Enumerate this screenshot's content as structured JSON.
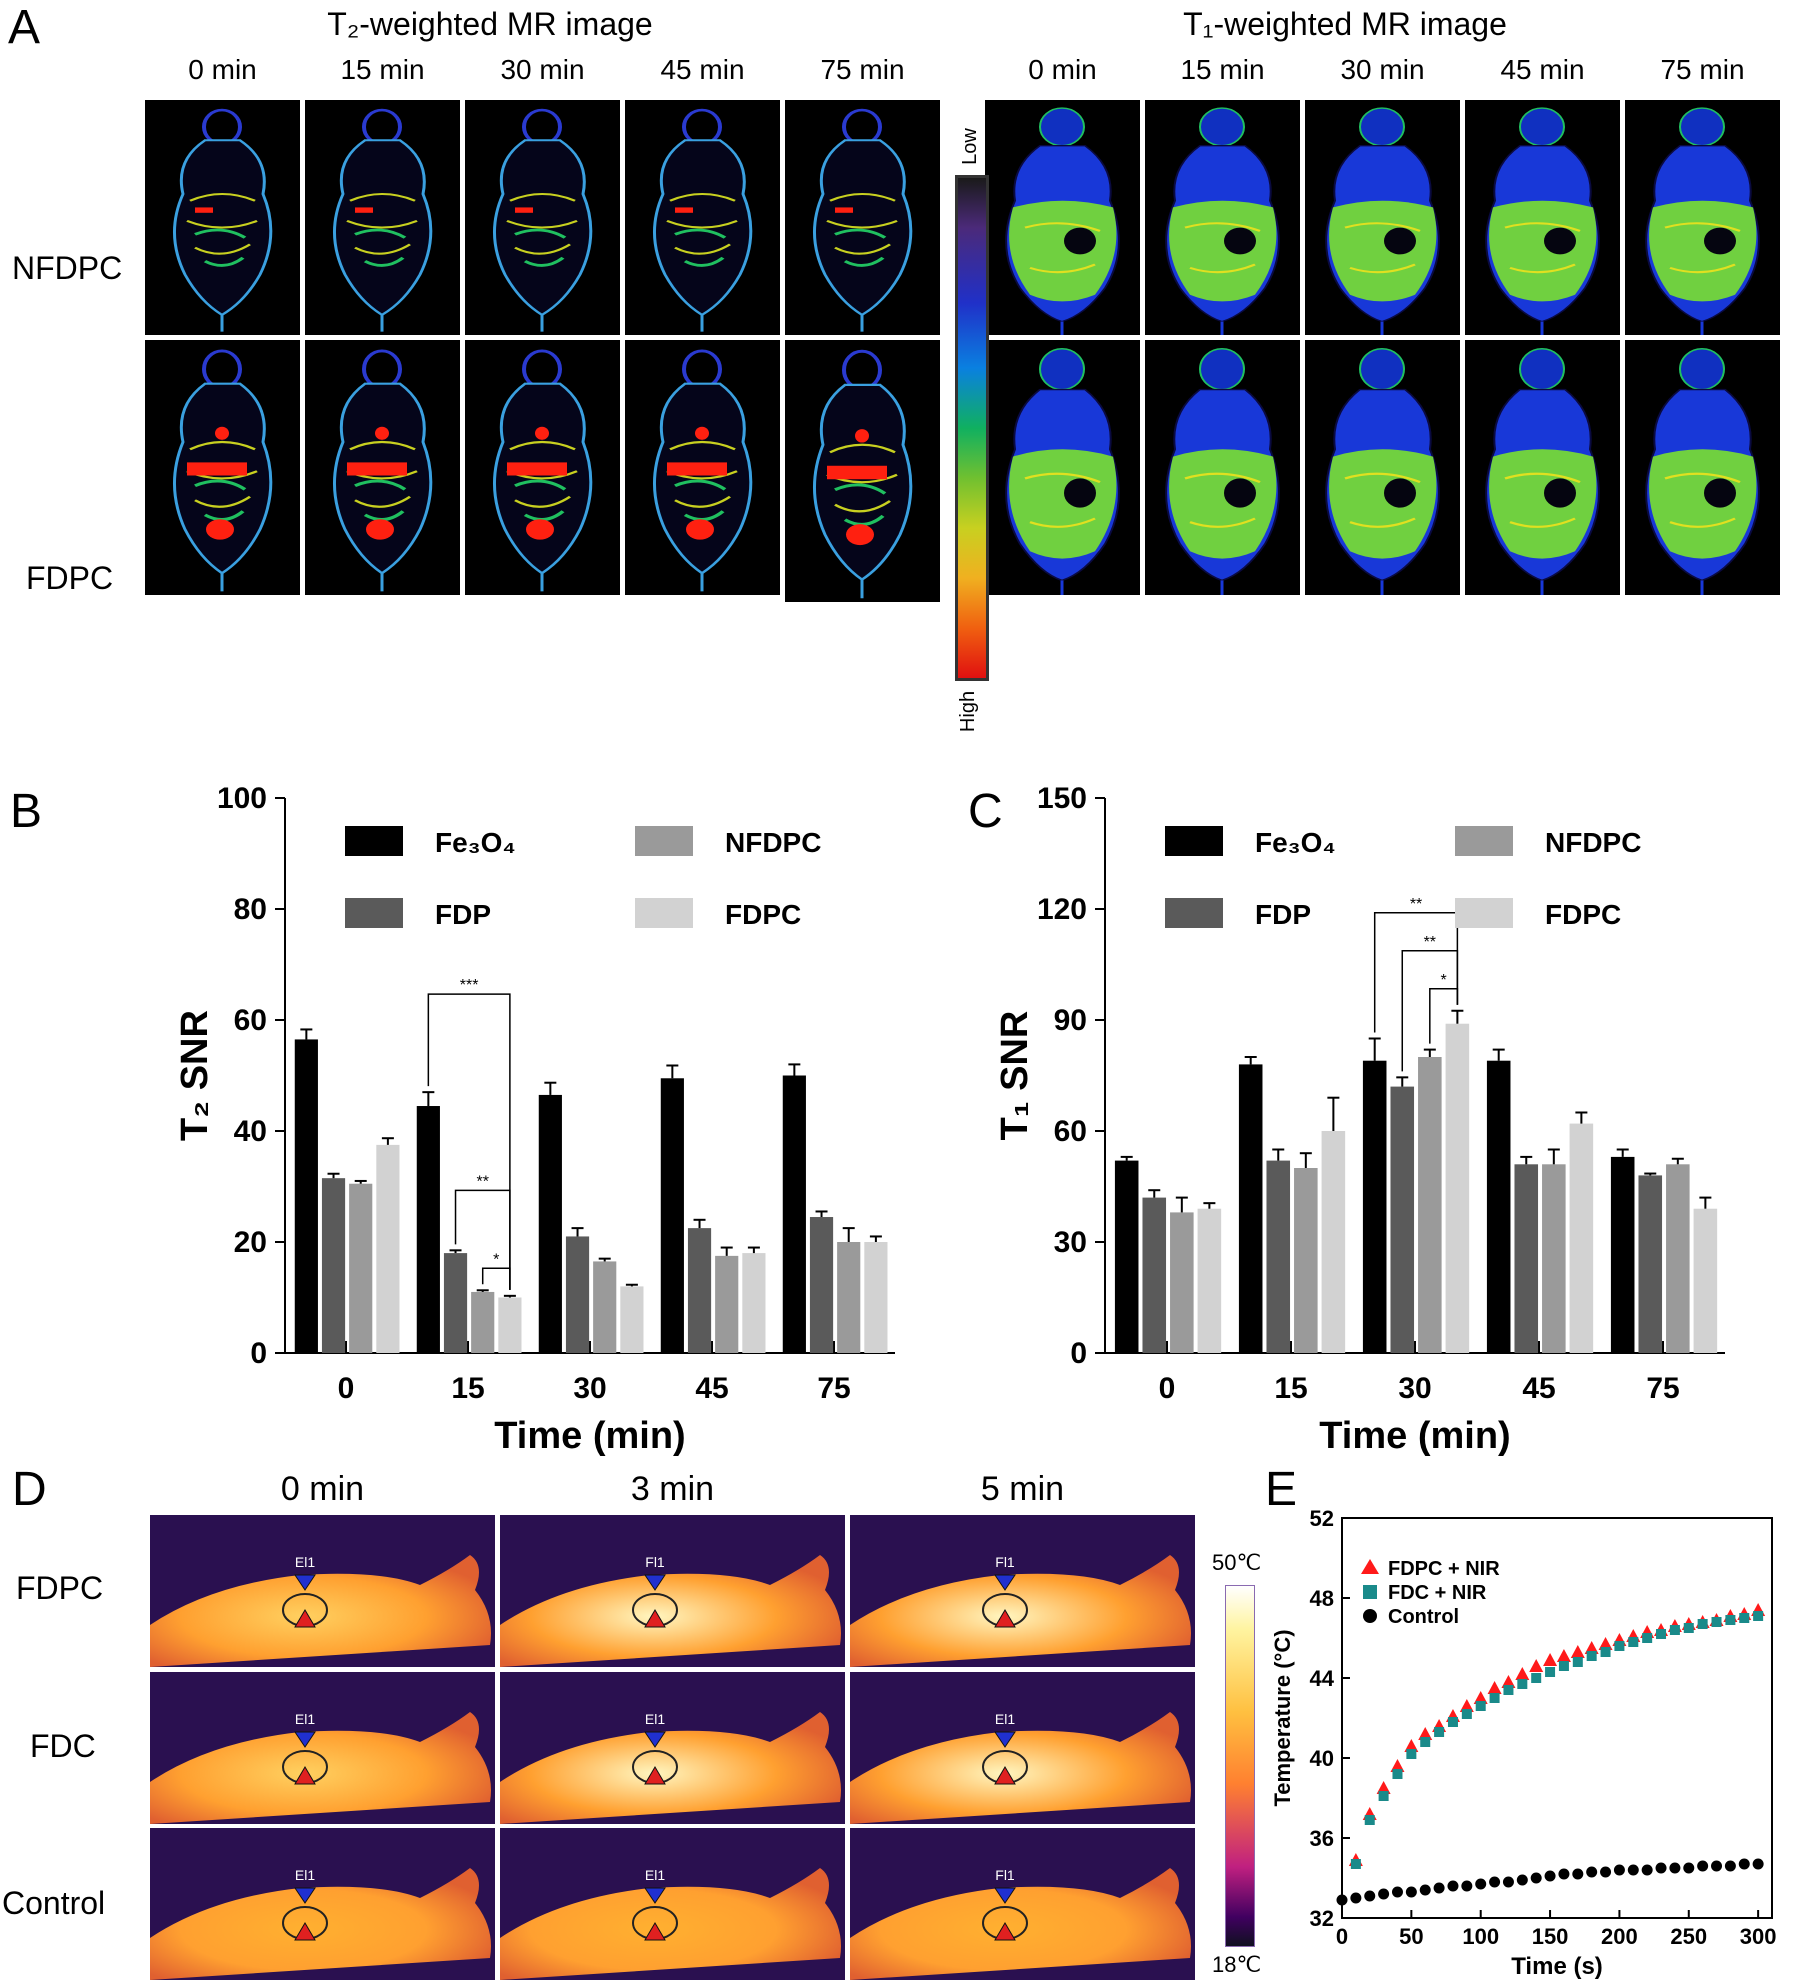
{
  "panelA": {
    "letter": "A",
    "t2_title": "T₂-weighted MR image",
    "t1_title": "T₁-weighted MR image",
    "times": [
      "0 min",
      "15 min",
      "30 min",
      "45 min",
      "75 min"
    ],
    "rows": [
      "NFDPC",
      "FDPC"
    ],
    "colorbar": {
      "low": "Low",
      "high": "High"
    }
  },
  "panelD": {
    "letter": "D",
    "times": [
      "0 min",
      "3 min",
      "5 min"
    ],
    "rows": [
      "FDPC",
      "FDC",
      "Control"
    ],
    "roi_labels": [
      [
        "El1",
        "Fl1",
        "Fl1"
      ],
      [
        "El1",
        "El1",
        "El1"
      ],
      [
        "El1",
        "El1",
        "Fl1"
      ]
    ],
    "scale_max": "50℃",
    "scale_min": "18℃"
  },
  "chart_data": [
    {
      "id": "B",
      "letter": "B",
      "type": "bar",
      "categories": [
        "0",
        "15",
        "30",
        "45",
        "75"
      ],
      "xlabel": "Time  (min)",
      "ylabel": "T₂ SNR",
      "ylim": [
        0,
        100
      ],
      "yticks": [
        0,
        20,
        40,
        60,
        80,
        100
      ],
      "series": [
        {
          "name": "Fe₃O₄",
          "color": "#000000",
          "values": [
            56.5,
            44.5,
            46.5,
            49.5,
            50.0
          ],
          "errors": [
            1.8,
            2.5,
            2.2,
            2.3,
            2.0
          ]
        },
        {
          "name": "FDP",
          "color": "#5a5a5a",
          "values": [
            31.5,
            18.0,
            21.0,
            22.5,
            24.5
          ],
          "errors": [
            0.8,
            0.5,
            1.5,
            1.5,
            1.0
          ]
        },
        {
          "name": "NFDPC",
          "color": "#9a9a9a",
          "values": [
            30.5,
            11.0,
            16.5,
            17.5,
            20.0
          ],
          "errors": [
            0.5,
            0.3,
            0.5,
            1.5,
            2.5
          ]
        },
        {
          "name": "FDPC",
          "color": "#d2d2d2",
          "values": [
            37.5,
            10.0,
            12.0,
            18.0,
            20.0
          ],
          "errors": [
            1.2,
            0.3,
            0.3,
            1.0,
            1.0
          ]
        }
      ],
      "significance": [
        {
          "category": 1,
          "from": 0,
          "to": 3,
          "label": "***"
        },
        {
          "category": 1,
          "from": 1,
          "to": 3,
          "label": "**"
        },
        {
          "category": 1,
          "from": 2,
          "to": 3,
          "label": "*"
        }
      ],
      "legend": "top"
    },
    {
      "id": "C",
      "letter": "C",
      "type": "bar",
      "categories": [
        "0",
        "15",
        "30",
        "45",
        "75"
      ],
      "xlabel": "Time  (min)",
      "ylabel": "T₁ SNR",
      "ylim": [
        0,
        150
      ],
      "yticks": [
        0,
        30,
        60,
        90,
        120,
        150
      ],
      "series": [
        {
          "name": "Fe₃O₄",
          "color": "#000000",
          "values": [
            52,
            78,
            79,
            79,
            53
          ],
          "errors": [
            1,
            2,
            6,
            3,
            2
          ]
        },
        {
          "name": "FDP",
          "color": "#5a5a5a",
          "values": [
            42,
            52,
            72,
            51,
            48
          ],
          "errors": [
            2,
            3,
            2.5,
            2,
            0.5
          ]
        },
        {
          "name": "NFDPC",
          "color": "#9a9a9a",
          "values": [
            38,
            50,
            80,
            51,
            51
          ],
          "errors": [
            4,
            4,
            2,
            4,
            1.5
          ]
        },
        {
          "name": "FDPC",
          "color": "#d2d2d2",
          "values": [
            39,
            60,
            89,
            62,
            39
          ],
          "errors": [
            1.5,
            9,
            3.5,
            3,
            3
          ]
        }
      ],
      "significance": [
        {
          "category": 2,
          "from": 0,
          "to": 3,
          "label": "**"
        },
        {
          "category": 2,
          "from": 1,
          "to": 3,
          "label": "**"
        },
        {
          "category": 2,
          "from": 2,
          "to": 3,
          "label": "*"
        }
      ],
      "legend": "top"
    },
    {
      "id": "E",
      "letter": "E",
      "type": "scatter",
      "xlabel": "Time (s)",
      "ylabel": "Temperature (°C)",
      "xlim": [
        0,
        310
      ],
      "ylim": [
        32,
        52
      ],
      "xticks": [
        0,
        50,
        100,
        150,
        200,
        250,
        300
      ],
      "yticks": [
        32,
        36,
        40,
        44,
        48,
        52
      ],
      "legend": "top-left",
      "series": [
        {
          "name": "FDPC + NIR",
          "color": "#ff1a1a",
          "marker": "triangle",
          "x": [
            10,
            20,
            30,
            40,
            50,
            60,
            70,
            80,
            90,
            100,
            110,
            120,
            130,
            140,
            150,
            160,
            170,
            180,
            190,
            200,
            210,
            220,
            230,
            240,
            250,
            260,
            270,
            280,
            290,
            300
          ],
          "y": [
            34.9,
            37.2,
            38.5,
            39.6,
            40.6,
            41.2,
            41.6,
            42.1,
            42.6,
            43.0,
            43.5,
            43.8,
            44.2,
            44.6,
            44.9,
            45.1,
            45.3,
            45.5,
            45.7,
            45.9,
            46.1,
            46.3,
            46.4,
            46.6,
            46.7,
            46.8,
            46.9,
            47.1,
            47.2,
            47.4
          ]
        },
        {
          "name": "FDC + NIR",
          "color": "#1a8a8a",
          "marker": "square",
          "x": [
            10,
            20,
            30,
            40,
            50,
            60,
            70,
            80,
            90,
            100,
            110,
            120,
            130,
            140,
            150,
            160,
            170,
            180,
            190,
            200,
            210,
            220,
            230,
            240,
            250,
            260,
            270,
            280,
            290,
            300
          ],
          "y": [
            34.7,
            36.9,
            38.1,
            39.2,
            40.2,
            40.8,
            41.3,
            41.8,
            42.2,
            42.6,
            43.0,
            43.4,
            43.7,
            44.0,
            44.3,
            44.6,
            44.8,
            45.1,
            45.3,
            45.6,
            45.8,
            46.0,
            46.2,
            46.4,
            46.5,
            46.7,
            46.8,
            46.9,
            47.0,
            47.1
          ]
        },
        {
          "name": "Control",
          "color": "#000000",
          "marker": "circle",
          "x": [
            0,
            10,
            20,
            30,
            40,
            50,
            60,
            70,
            80,
            90,
            100,
            110,
            120,
            130,
            140,
            150,
            160,
            170,
            180,
            190,
            200,
            210,
            220,
            230,
            240,
            250,
            260,
            270,
            280,
            290,
            300
          ],
          "y": [
            32.9,
            33.0,
            33.1,
            33.2,
            33.3,
            33.3,
            33.4,
            33.5,
            33.6,
            33.6,
            33.7,
            33.8,
            33.8,
            33.9,
            34.0,
            34.1,
            34.2,
            34.2,
            34.3,
            34.3,
            34.4,
            34.4,
            34.4,
            34.5,
            34.5,
            34.5,
            34.6,
            34.6,
            34.6,
            34.7,
            34.7
          ]
        }
      ]
    }
  ]
}
